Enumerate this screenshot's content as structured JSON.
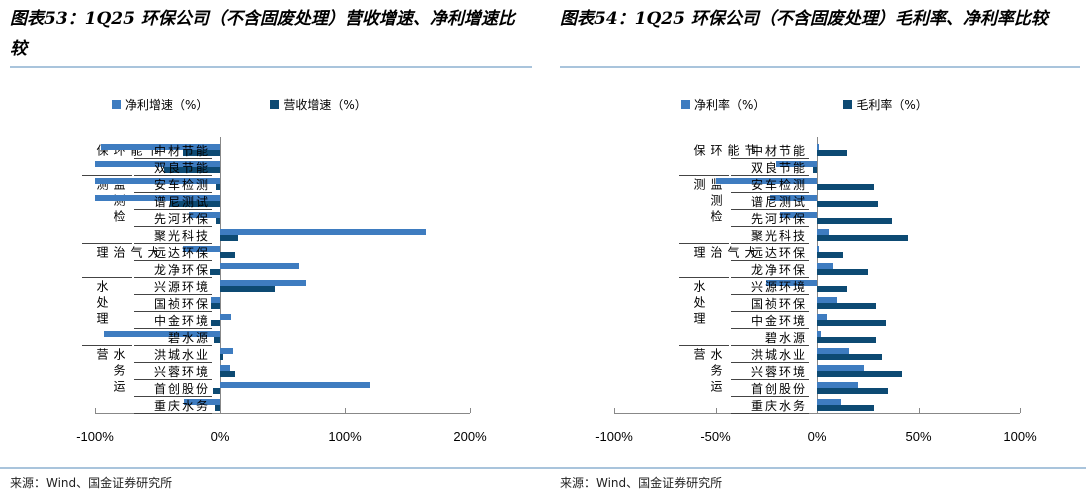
{
  "left": {
    "title": "图表53：1Q25 环保公司（不含固废处理）营收增速、净利增速比较",
    "source": "来源：Wind、国金证券研究所",
    "legend": [
      {
        "label": "净利增速（%）",
        "color": "#3e7cc0"
      },
      {
        "label": "营收增速（%）",
        "color": "#0d4a73"
      }
    ],
    "ticks": [
      "-100%",
      "0%",
      "100%",
      "200%"
    ]
  },
  "right": {
    "title": "图表54：1Q25 环保公司（不含固废处理）毛利率、净利率比较",
    "source": "来源：Wind、国金证券研究所",
    "legend": [
      {
        "label": "净利率（%）",
        "color": "#3e7cc0"
      },
      {
        "label": "毛利率（%）",
        "color": "#0d4a73"
      }
    ],
    "ticks": [
      "-100%",
      "-50%",
      "0%",
      "50%",
      "100%"
    ]
  },
  "groups": [
    {
      "name": "节能环保",
      "rows": 2
    },
    {
      "name": "监测检测",
      "rows": 4
    },
    {
      "name": "大气治理",
      "rows": 2
    },
    {
      "name": "水处理",
      "rows": 4
    },
    {
      "name": "水务运营",
      "rows": 4
    }
  ],
  "chart_data": [
    {
      "type": "bar",
      "orientation": "horizontal",
      "title": "图表53：1Q25 环保公司（不含固废处理）营收增速、净利增速比较",
      "categories": [
        "中材节能",
        "双良节能",
        "安车检测",
        "谱尼测试",
        "先河环保",
        "聚光科技",
        "远达环保",
        "龙净环保",
        "兴源环境",
        "国祯环保",
        "中金环境",
        "碧水源",
        "洪城水业",
        "兴蓉环境",
        "首创股份",
        "重庆水务"
      ],
      "category_groups": [
        "节能环保",
        "节能环保",
        "监测检测",
        "监测检测",
        "监测检测",
        "监测检测",
        "大气治理",
        "大气治理",
        "水处理",
        "水处理",
        "水处理",
        "水处理",
        "水务运营",
        "水务运营",
        "水务运营",
        "水务运营"
      ],
      "series": [
        {
          "name": "净利增速（%）",
          "color": "#3e7cc0",
          "values": [
            -95,
            -100,
            -100,
            -100,
            -25,
            165,
            -30,
            63,
            69,
            -7,
            9,
            -93,
            10,
            8,
            120,
            -29
          ]
        },
        {
          "name": "营收增速（%）",
          "color": "#0d4a73",
          "values": [
            -30,
            -45,
            -3,
            -40,
            -3,
            14,
            12,
            -8,
            44,
            -7,
            -7,
            -5,
            2,
            12,
            -6,
            -4
          ]
        }
      ],
      "xlim": [
        -100,
        200
      ],
      "xticks": [
        "-100%",
        "0%",
        "100%",
        "200%"
      ],
      "legend_position": "top",
      "grid": false
    },
    {
      "type": "bar",
      "orientation": "horizontal",
      "title": "图表54：1Q25 环保公司（不含固废处理）毛利率、净利率比较",
      "categories": [
        "中材节能",
        "双良节能",
        "安车检测",
        "谱尼测试",
        "先河环保",
        "聚光科技",
        "远达环保",
        "龙净环保",
        "兴源环境",
        "国祯环保",
        "中金环境",
        "碧水源",
        "洪城水业",
        "兴蓉环境",
        "首创股份",
        "重庆水务"
      ],
      "category_groups": [
        "节能环保",
        "节能环保",
        "监测检测",
        "监测检测",
        "监测检测",
        "监测检测",
        "大气治理",
        "大气治理",
        "水处理",
        "水处理",
        "水处理",
        "水处理",
        "水务运营",
        "水务运营",
        "水务运营",
        "水务运营"
      ],
      "series": [
        {
          "name": "净利率（%）",
          "color": "#3e7cc0",
          "values": [
            1,
            -20,
            -50,
            -23,
            -18,
            6,
            1,
            8,
            -25,
            10,
            5,
            2,
            16,
            23,
            20,
            12
          ]
        },
        {
          "name": "毛利率（%）",
          "color": "#0d4a73",
          "values": [
            15,
            -2,
            28,
            30,
            37,
            45,
            13,
            25,
            15,
            29,
            34,
            29,
            32,
            42,
            35,
            28
          ]
        }
      ],
      "xlim": [
        -100,
        100
      ],
      "xticks": [
        "-100%",
        "-50%",
        "0%",
        "50%",
        "100%"
      ],
      "legend_position": "top",
      "grid": false
    }
  ]
}
